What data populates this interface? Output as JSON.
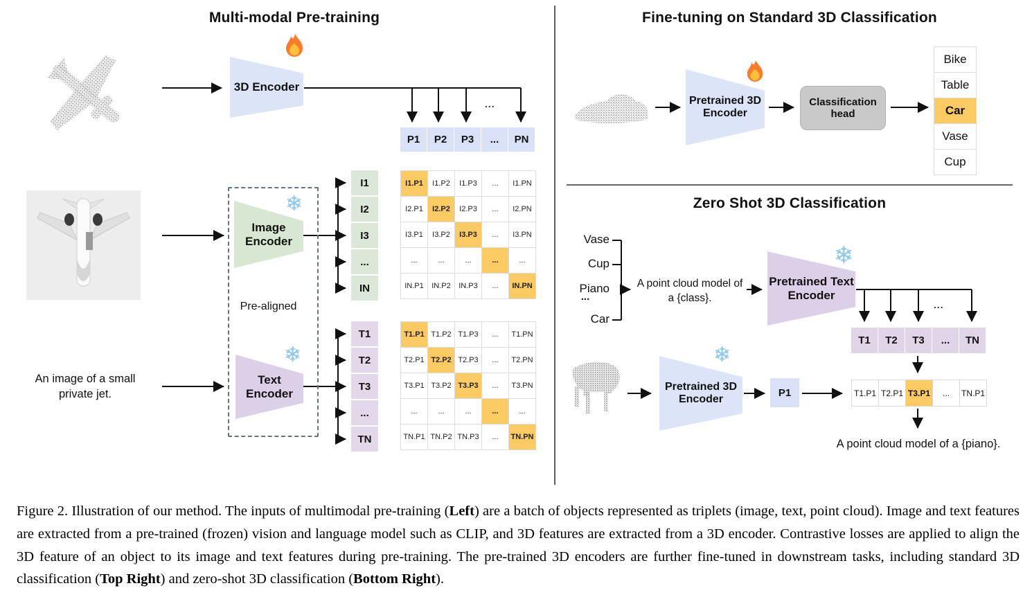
{
  "pretraining": {
    "title": "Multi-modal Pre-training",
    "encoder_3d_label": "3D Encoder",
    "image_encoder_label": "Image\nEncoder",
    "text_encoder_label": "Text\nEncoder",
    "prealigned_label": "Pre-aligned",
    "image_caption": "An image of a small\nprivate jet.",
    "p_row": [
      "P1",
      "P2",
      "P3",
      "...",
      "PN"
    ],
    "i_labels": [
      "I1",
      "I2",
      "I3",
      "...",
      "IN"
    ],
    "t_labels": [
      "T1",
      "T2",
      "T3",
      "...",
      "TN"
    ],
    "i_matrix": [
      [
        "I1.P1",
        "I1.P2",
        "I1.P3",
        "...",
        "I1.PN"
      ],
      [
        "I2.P1",
        "I2.P2",
        "I2.P3",
        "...",
        "I2.PN"
      ],
      [
        "I3.P1",
        "I3.P2",
        "I3.P3",
        "...",
        "I3.PN"
      ],
      [
        "...",
        "...",
        "...",
        "...",
        "..."
      ],
      [
        "IN.P1",
        "IN.P2",
        "IN.P3",
        "...",
        "IN.PN"
      ]
    ],
    "t_matrix": [
      [
        "T1.P1",
        "T1.P2",
        "T1.P3",
        "...",
        "T1.PN"
      ],
      [
        "T2.P1",
        "T2.P2",
        "T2.P3",
        "...",
        "T2.PN"
      ],
      [
        "T3.P1",
        "T3.P2",
        "T3.P3",
        "...",
        "T3.PN"
      ],
      [
        "...",
        "...",
        "...",
        "...",
        "..."
      ],
      [
        "TN.P1",
        "TN.P2",
        "TN.P3",
        "...",
        "TN.PN"
      ]
    ],
    "branch_ellipsis": "..."
  },
  "finetuning": {
    "title": "Fine-tuning on Standard 3D Classification",
    "encoder_label": "Pretrained 3D\nEncoder",
    "head_label": "Classification\nhead",
    "classes": [
      "Bike",
      "Table",
      "Car",
      "Vase",
      "Cup"
    ],
    "highlight_index": 2
  },
  "zeroshot": {
    "title": "Zero Shot 3D Classification",
    "classes": [
      "Vase",
      "Cup",
      "Piano",
      "...",
      "Car"
    ],
    "prompt": "A point cloud model of\na {class}.",
    "text_encoder_label": "Pretrained Text\nEncoder",
    "encoder_label": "Pretrained 3D\nEncoder",
    "t_row": [
      "T1",
      "T2",
      "T3",
      "...",
      "TN"
    ],
    "p_cell": "P1",
    "result_row": [
      "T1.P1",
      "T2.P1",
      "T3.P1",
      "...",
      "TN.P1"
    ],
    "result_highlight_index": 2,
    "result_caption": "A point cloud model of a {piano}.",
    "branch_ellipsis": "..."
  },
  "icons": {
    "fire": "flame-icon",
    "snowflake": "❄"
  },
  "colors": {
    "blue": "#d8e1f5",
    "green": "#dbe8d8",
    "purple": "#e0d4e8",
    "orange_highlight": "#fbca63",
    "head_gray": "#c9c9c9"
  },
  "caption_segments": [
    {
      "text": "Figure 2. Illustration of our method. The inputs of multimodal pre-training (",
      "bold": false
    },
    {
      "text": "Left",
      "bold": true
    },
    {
      "text": ") are a batch of objects represented as triplets (image, text, point cloud).  Image and text features are extracted from a pre-trained (frozen) vision and language model such as CLIP, and 3D features are extracted from a 3D encoder.  Contrastive losses are applied to align the 3D feature of an object to its image and text features during pre-training.  The pre-trained 3D encoders are further fine-tuned in downstream tasks, including standard 3D classification (",
      "bold": false
    },
    {
      "text": "Top Right",
      "bold": true
    },
    {
      "text": ") and zero-shot 3D classification (",
      "bold": false
    },
    {
      "text": "Bottom Right",
      "bold": true
    },
    {
      "text": ").",
      "bold": false
    }
  ]
}
